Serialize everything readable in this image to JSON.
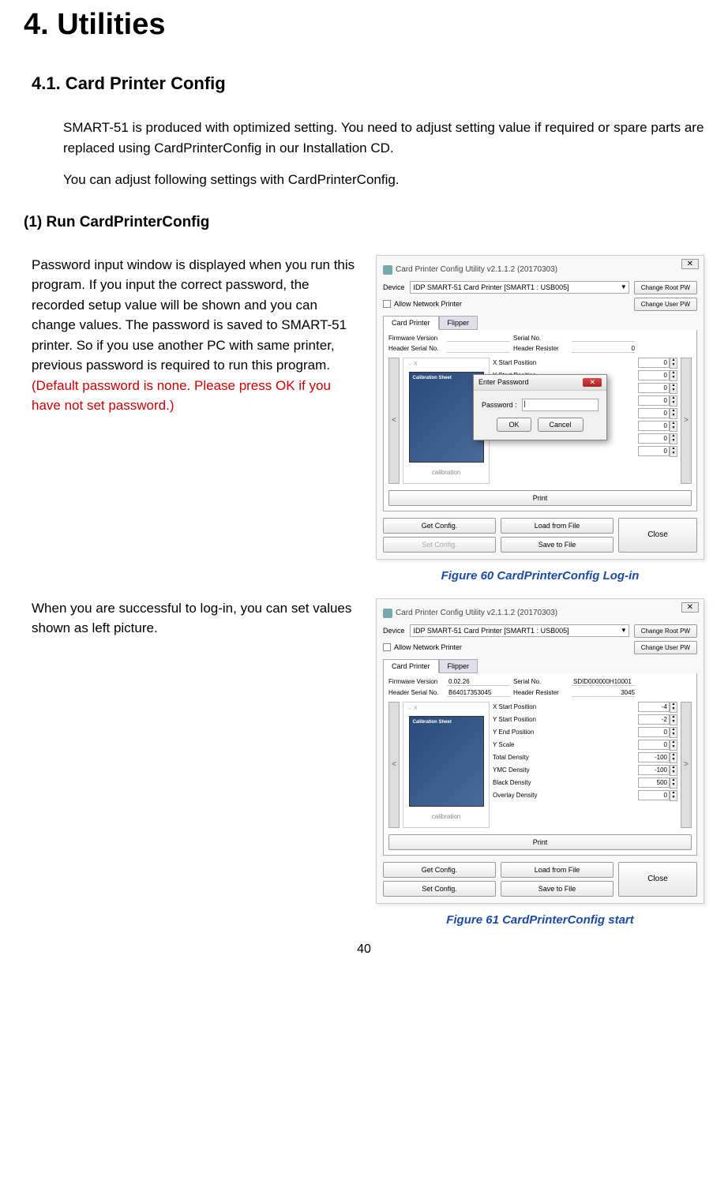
{
  "heading1": "4. Utilities",
  "heading2": "4.1. Card Printer Config",
  "intro1": "SMART-51 is produced with optimized setting. You need to adjust setting value if required or spare parts are replaced using CardPrinterConfig in our Installation CD.",
  "intro2": "You can adjust following settings with CardPrinterConfig.",
  "heading3": "(1) Run CardPrinterConfig",
  "para1": "Password input window is displayed when you run this program. If you input the correct password, the recorded setup value will be shown and you can change values. The password is saved to SMART-51 printer. So if you use another PC with same printer, previous password is required to run this program. ",
  "para1_red": "(Default password is none. Please press OK if you have not set password.)",
  "para2": "When you are successful to log-in, you can set values shown as left picture.",
  "window_title": "Card Printer Config Utility v2.1.1.2 (20170303)",
  "device_label": "Device",
  "device_value": "IDP SMART-51 Card Printer  [SMART1 : USB005]",
  "btn_root_pw": "Change Root PW",
  "btn_user_pw": "Change User PW",
  "checkbox_label": "Allow Network Printer",
  "tab1": "Card Printer",
  "tab2": "Flipper",
  "field_fw": "Firmware Version",
  "field_serial": "Serial No.",
  "field_header_serial": "Header Serial No.",
  "field_header_resister": "Header Resister",
  "screenshot1": {
    "fw_value": "",
    "serial_value": "",
    "header_serial_value": "",
    "header_resister_value": "0",
    "spinners": [
      {
        "label": "X Start Position",
        "value": "0"
      },
      {
        "label": "Y Start Position",
        "value": "0"
      },
      {
        "label": "",
        "value": "0"
      },
      {
        "label": "",
        "value": "0"
      },
      {
        "label": "",
        "value": "0"
      },
      {
        "label": "",
        "value": "0"
      },
      {
        "label": "",
        "value": "0"
      },
      {
        "label": "",
        "value": "0"
      }
    ],
    "password_dialog": {
      "title": "Enter Password",
      "label": "Password :",
      "ok": "OK",
      "cancel": "Cancel"
    }
  },
  "screenshot2": {
    "fw_value": "0.02.26",
    "serial_value": "SDID000000H10001",
    "header_serial_value": "B64017353045",
    "header_resister_value": "3045",
    "spinners": [
      {
        "label": "X Start Position",
        "value": "-4"
      },
      {
        "label": "Y Start Position",
        "value": "-2"
      },
      {
        "label": "Y End Position",
        "value": "0"
      },
      {
        "label": "Y Scale",
        "value": "0"
      },
      {
        "label": "Total Density",
        "value": "-100"
      },
      {
        "label": "YMC Density",
        "value": "-100"
      },
      {
        "label": "Black Density",
        "value": "500"
      },
      {
        "label": "Overlay Density",
        "value": "0"
      }
    ]
  },
  "calibration": "calibration",
  "calib_sheet": "Calibration Sheet",
  "btn_print": "Print",
  "btn_get_config": "Get Config.",
  "btn_set_config": "Set Config.",
  "btn_load": "Load from File",
  "btn_save": "Save to File",
  "btn_close": "Close",
  "figure60": "Figure 60 CardPrinterConfig Log-in",
  "figure61": "Figure 61 CardPrinterConfig start",
  "page_num": "40"
}
